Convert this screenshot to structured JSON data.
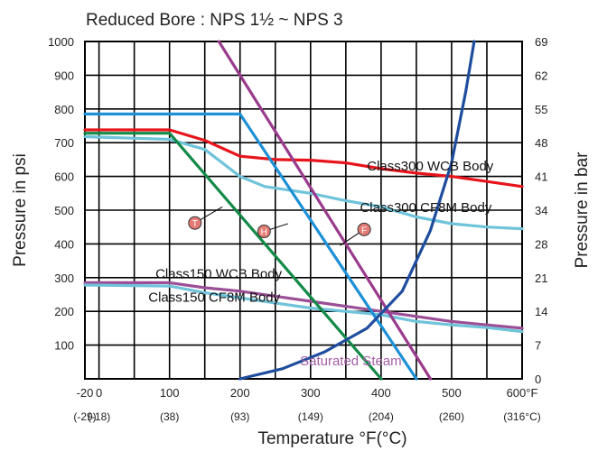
{
  "chart_data": {
    "type": "line",
    "title": "Reduced Bore : NPS 1½ ~ NPS 3",
    "xlabel": "Temperature °F(°C)",
    "ylabel": "Pressure in psi",
    "y2label": "Pressure in bar",
    "xlim": [
      -20,
      600
    ],
    "ylim": [
      0,
      1000
    ],
    "x_ticks": [
      {
        "value": -20,
        "label": "-20",
        "sub": "(-29)"
      },
      {
        "value": 0,
        "label": "0",
        "sub": "(-18)"
      },
      {
        "value": 100,
        "label": "100",
        "sub": "(38)"
      },
      {
        "value": 200,
        "label": "200",
        "sub": "(93)"
      },
      {
        "value": 300,
        "label": "300",
        "sub": "(149)"
      },
      {
        "value": 400,
        "label": "400",
        "sub": "(204)"
      },
      {
        "value": 500,
        "label": "500",
        "sub": "(260)"
      },
      {
        "value": 600,
        "label": "600°F",
        "sub": "(316°C)"
      }
    ],
    "y_ticks": [
      100,
      200,
      300,
      400,
      500,
      600,
      700,
      800,
      900,
      1000
    ],
    "y2_ticks": [
      {
        "value": 0,
        "label": "0"
      },
      {
        "value": 100,
        "label": "7"
      },
      {
        "value": 200,
        "label": "14"
      },
      {
        "value": 300,
        "label": "21"
      },
      {
        "value": 400,
        "label": "28"
      },
      {
        "value": 500,
        "label": "34"
      },
      {
        "value": 600,
        "label": "41"
      },
      {
        "value": 700,
        "label": "48"
      },
      {
        "value": 800,
        "label": "55"
      },
      {
        "value": 900,
        "label": "62"
      },
      {
        "value": 1000,
        "label": "69"
      }
    ],
    "x_grid": [
      -20,
      0,
      50,
      100,
      150,
      200,
      250,
      300,
      350,
      400,
      450,
      500,
      550,
      600
    ],
    "y_grid": [
      100,
      200,
      300,
      400,
      500,
      600,
      700,
      800,
      900,
      1000
    ],
    "grid": true,
    "series": [
      {
        "name": "Class300 WCB Body",
        "color": "#e8141b",
        "points": [
          [
            -20,
            738
          ],
          [
            100,
            738
          ],
          [
            150,
            707
          ],
          [
            200,
            660
          ],
          [
            250,
            650
          ],
          [
            300,
            648
          ],
          [
            350,
            640
          ],
          [
            400,
            623
          ],
          [
            450,
            610
          ],
          [
            500,
            600
          ],
          [
            550,
            585
          ],
          [
            600,
            570
          ]
        ]
      },
      {
        "name": "Class300 CF8M Body",
        "color": "#6fc3da",
        "points": [
          [
            -20,
            718
          ],
          [
            100,
            710
          ],
          [
            150,
            680
          ],
          [
            200,
            600
          ],
          [
            235,
            570
          ],
          [
            300,
            550
          ],
          [
            350,
            528
          ],
          [
            400,
            510
          ],
          [
            450,
            480
          ],
          [
            500,
            460
          ],
          [
            550,
            450
          ],
          [
            600,
            445
          ]
        ]
      },
      {
        "name": "Class150 WCB Body",
        "color": "#9b4f96",
        "points": [
          [
            -20,
            285
          ],
          [
            100,
            285
          ],
          [
            150,
            270
          ],
          [
            200,
            260
          ],
          [
            250,
            245
          ],
          [
            300,
            230
          ],
          [
            350,
            215
          ],
          [
            400,
            200
          ],
          [
            450,
            185
          ],
          [
            500,
            170
          ],
          [
            550,
            160
          ],
          [
            600,
            150
          ]
        ]
      },
      {
        "name": "Class150 CF8M Body",
        "color": "#6fc3da",
        "points": [
          [
            -20,
            278
          ],
          [
            100,
            275
          ],
          [
            150,
            255
          ],
          [
            200,
            240
          ],
          [
            250,
            225
          ],
          [
            300,
            210
          ],
          [
            350,
            200
          ],
          [
            400,
            190
          ],
          [
            450,
            170
          ],
          [
            500,
            160
          ],
          [
            550,
            152
          ],
          [
            600,
            140
          ]
        ]
      },
      {
        "name": "T",
        "color": "#148a48",
        "points": [
          [
            -20,
            728
          ],
          [
            100,
            728
          ],
          [
            400,
            0
          ]
        ]
      },
      {
        "name": "H",
        "color": "#1e90d6",
        "points": [
          [
            -20,
            785
          ],
          [
            200,
            785
          ],
          [
            450,
            0
          ]
        ]
      },
      {
        "name": "F",
        "color": "#9a3b8c",
        "points": [
          [
            170,
            1000
          ],
          [
            470,
            0
          ]
        ]
      },
      {
        "name": "Saturated Steam",
        "color": "#1f4d9e",
        "points": [
          [
            200,
            0
          ],
          [
            260,
            30
          ],
          [
            320,
            80
          ],
          [
            380,
            150
          ],
          [
            430,
            260
          ],
          [
            470,
            440
          ],
          [
            500,
            640
          ],
          [
            520,
            850
          ],
          [
            532,
            1000
          ]
        ]
      }
    ],
    "annotations": [
      {
        "text": "Class300 WCB Body",
        "x": 380,
        "y": 618,
        "color": "#111111"
      },
      {
        "text": "Class300 CF8M Body",
        "x": 370,
        "y": 495,
        "color": "#111111"
      },
      {
        "text": "Class150 WCB Body",
        "x": 80,
        "y": 298,
        "color": "#111111"
      },
      {
        "text": "Class150 CF8M Body",
        "x": 70,
        "y": 228,
        "color": "#111111"
      },
      {
        "text": "Saturated Steam",
        "x": 285,
        "y": 40,
        "color": "#a35ea7"
      }
    ],
    "markers": [
      {
        "text": "T",
        "x": 136,
        "y": 462,
        "line_to": [
          175,
          510
        ],
        "color": "#148a48"
      },
      {
        "text": "H",
        "x": 234,
        "y": 437,
        "line_to": [
          268,
          460
        ],
        "color": "#1e90d6"
      },
      {
        "text": "F",
        "x": 376,
        "y": 443,
        "line_to": [
          342,
          395
        ],
        "color": "#9a3b8c"
      }
    ]
  }
}
